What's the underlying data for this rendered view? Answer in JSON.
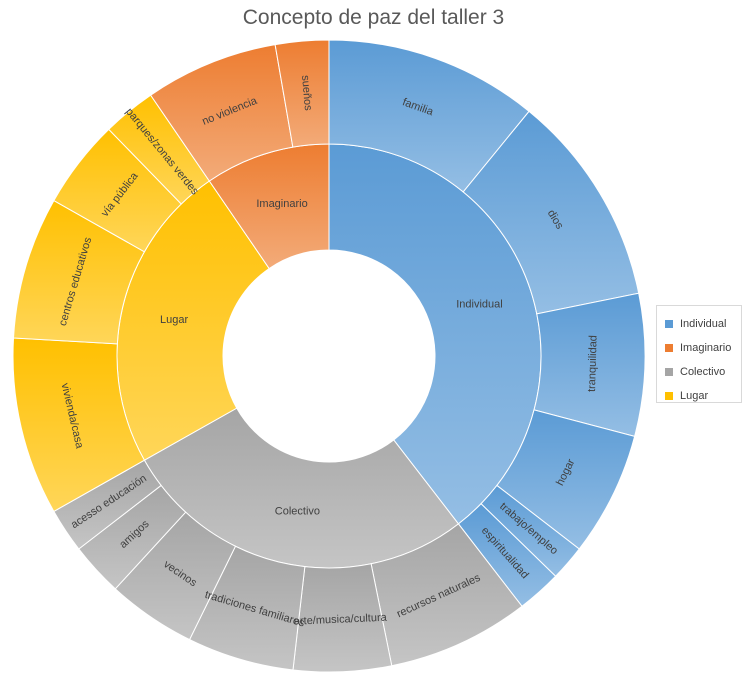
{
  "chart_data": {
    "type": "sunburst",
    "title": "Concepto de paz del taller 3",
    "legend_position": "right",
    "categories": [
      {
        "name": "Individual",
        "color": "#5b9bd5",
        "children": [
          {
            "name": "familia",
            "value": 12
          },
          {
            "name": "dios",
            "value": 12
          },
          {
            "name": "tranquilidad",
            "value": 8
          },
          {
            "name": "hogar",
            "value": 7
          },
          {
            "name": "trabajo/empleo",
            "value": 2
          },
          {
            "name": "espiritualidad",
            "value": 2.5
          }
        ]
      },
      {
        "name": "Colectivo",
        "color": "#a5a5a5",
        "children": [
          {
            "name": "recursos naturales",
            "value": 8
          },
          {
            "name": "arte/musica/cultura",
            "value": 5.5
          },
          {
            "name": "tradiciones familiares",
            "value": 6
          },
          {
            "name": "vecinos",
            "value": 5
          },
          {
            "name": "amigos",
            "value": 3
          },
          {
            "name": "acesso educación",
            "value": 2.5
          }
        ]
      },
      {
        "name": "Lugar",
        "color": "#ffc000",
        "children": [
          {
            "name": "vivienda/casa",
            "value": 10
          },
          {
            "name": "centros educativos",
            "value": 8
          },
          {
            "name": "vía pública",
            "value": 5
          },
          {
            "name": "parques/zonas verdes",
            "value": 3
          }
        ]
      },
      {
        "name": "Imaginario",
        "color": "#ed7d31",
        "children": [
          {
            "name": "no violencia",
            "value": 7.5
          },
          {
            "name": "sueños",
            "value": 3
          }
        ]
      }
    ]
  },
  "legend": {
    "items": [
      {
        "label": "Individual",
        "color": "#5b9bd5"
      },
      {
        "label": "Imaginario",
        "color": "#ed7d31"
      },
      {
        "label": "Colectivo",
        "color": "#a5a5a5"
      },
      {
        "label": "Lugar",
        "color": "#ffc000"
      }
    ]
  }
}
